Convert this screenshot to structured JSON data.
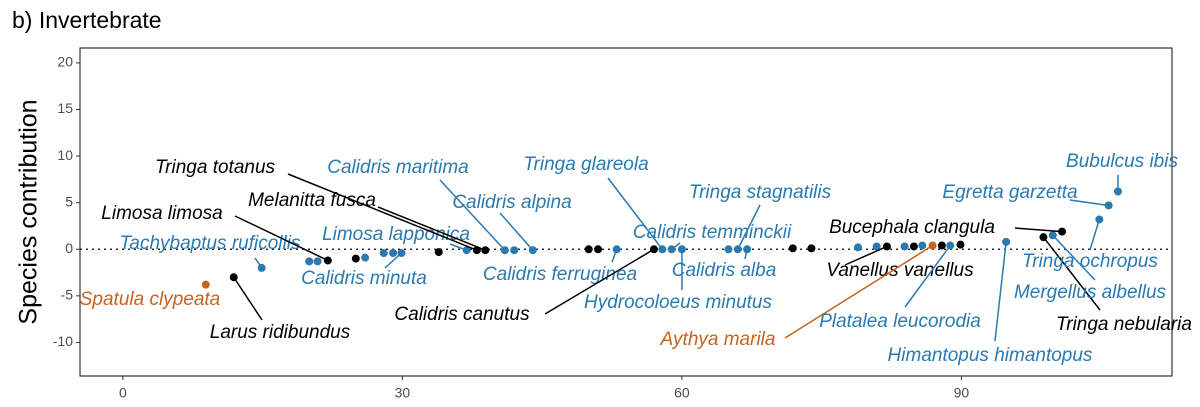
{
  "chart_data": {
    "type": "scatter",
    "title": "b) Invertebrate",
    "y_label": "Species contribution",
    "x": [
      8.9,
      11.9,
      14.9,
      20.0,
      20.9,
      22.0,
      25.0,
      26.0,
      28.0,
      29.0,
      29.9,
      33.9,
      36.9,
      38.0,
      38.9,
      41.0,
      42.0,
      44.0,
      50.0,
      51.0,
      53.0,
      57.0,
      57.9,
      58.9,
      60.0,
      65.0,
      66.0,
      67.0,
      71.9,
      73.9,
      78.9,
      80.9,
      82.0,
      83.9,
      84.9,
      85.8,
      86.9,
      87.9,
      88.8,
      89.9,
      94.8,
      98.8,
      99.8,
      100.8,
      104.8,
      105.8,
      106.8
    ],
    "values": [
      -3.8,
      -3.0,
      -2.0,
      -1.3,
      -1.3,
      -1.2,
      -1.0,
      -0.9,
      -0.4,
      -0.4,
      -0.4,
      -0.3,
      -0.1,
      -0.1,
      -0.1,
      -0.1,
      -0.1,
      -0.1,
      0,
      0,
      0,
      0,
      0,
      0,
      0,
      0,
      0,
      0,
      0.1,
      0.1,
      0.2,
      0.3,
      0.3,
      0.3,
      0.3,
      0.4,
      0.4,
      0.4,
      0.4,
      0.5,
      0.8,
      1.3,
      1.5,
      1.9,
      3.2,
      4.7,
      6.2
    ],
    "labels": [
      "Spatula clypeata",
      "Larus ridibundus",
      "Tachybaptus ruficollis",
      null,
      null,
      "Limosa limosa",
      null,
      null,
      null,
      null,
      "Calidris minuta",
      null,
      "Limosa lapponica",
      "Tringa totanus",
      "Melanitta fusca",
      "Calidris maritima",
      null,
      "Calidris alpina",
      null,
      null,
      "Calidris ferruginea",
      "Calidris canutus",
      "Tringa glareola",
      "Calidris temminckii",
      "Hydrocoloeus minutus",
      null,
      "Tringa stagnatilis",
      "Calidris alba",
      null,
      null,
      null,
      null,
      "Vanellus vanellus",
      null,
      null,
      null,
      "Aythya marila",
      null,
      "Platalea leucorodia",
      null,
      "Himantopus himantopus",
      "Tringa nebularia",
      "Mergellus albellus",
      "Bucephala clangula",
      "Tringa ochropus",
      "Egretta garzetta",
      "Bubulcus ibis"
    ],
    "colors": [
      "#c8621c",
      "#000000",
      "#2a7ab0",
      "#2a7ab0",
      "#2a7ab0",
      "#000000",
      "#000000",
      "#2a7ab0",
      "#2a7ab0",
      "#2a7ab0",
      "#2a7ab0",
      "#000000",
      "#2a7ab0",
      "#000000",
      "#000000",
      "#2a7ab0",
      "#2a7ab0",
      "#2a7ab0",
      "#000000",
      "#000000",
      "#2a7ab0",
      "#000000",
      "#2a7ab0",
      "#2a7ab0",
      "#2a7ab0",
      "#2a7ab0",
      "#2a7ab0",
      "#2a7ab0",
      "#000000",
      "#000000",
      "#2a7ab0",
      "#2a7ab0",
      "#000000",
      "#2a7ab0",
      "#000000",
      "#2a7ab0",
      "#c8621c",
      "#000000",
      "#2a7ab0",
      "#000000",
      "#2a7ab0",
      "#000000",
      "#2a7ab0",
      "#000000",
      "#2a7ab0",
      "#2a7ab0",
      "#2a7ab0"
    ],
    "xlim": [
      -4.6,
      112.6
    ],
    "ylim": [
      -13.6,
      21.6
    ],
    "xticks": [
      0,
      30,
      60,
      90
    ],
    "yticks": [
      -10,
      -5,
      0,
      5,
      10,
      15,
      20
    ],
    "grid": false
  }
}
